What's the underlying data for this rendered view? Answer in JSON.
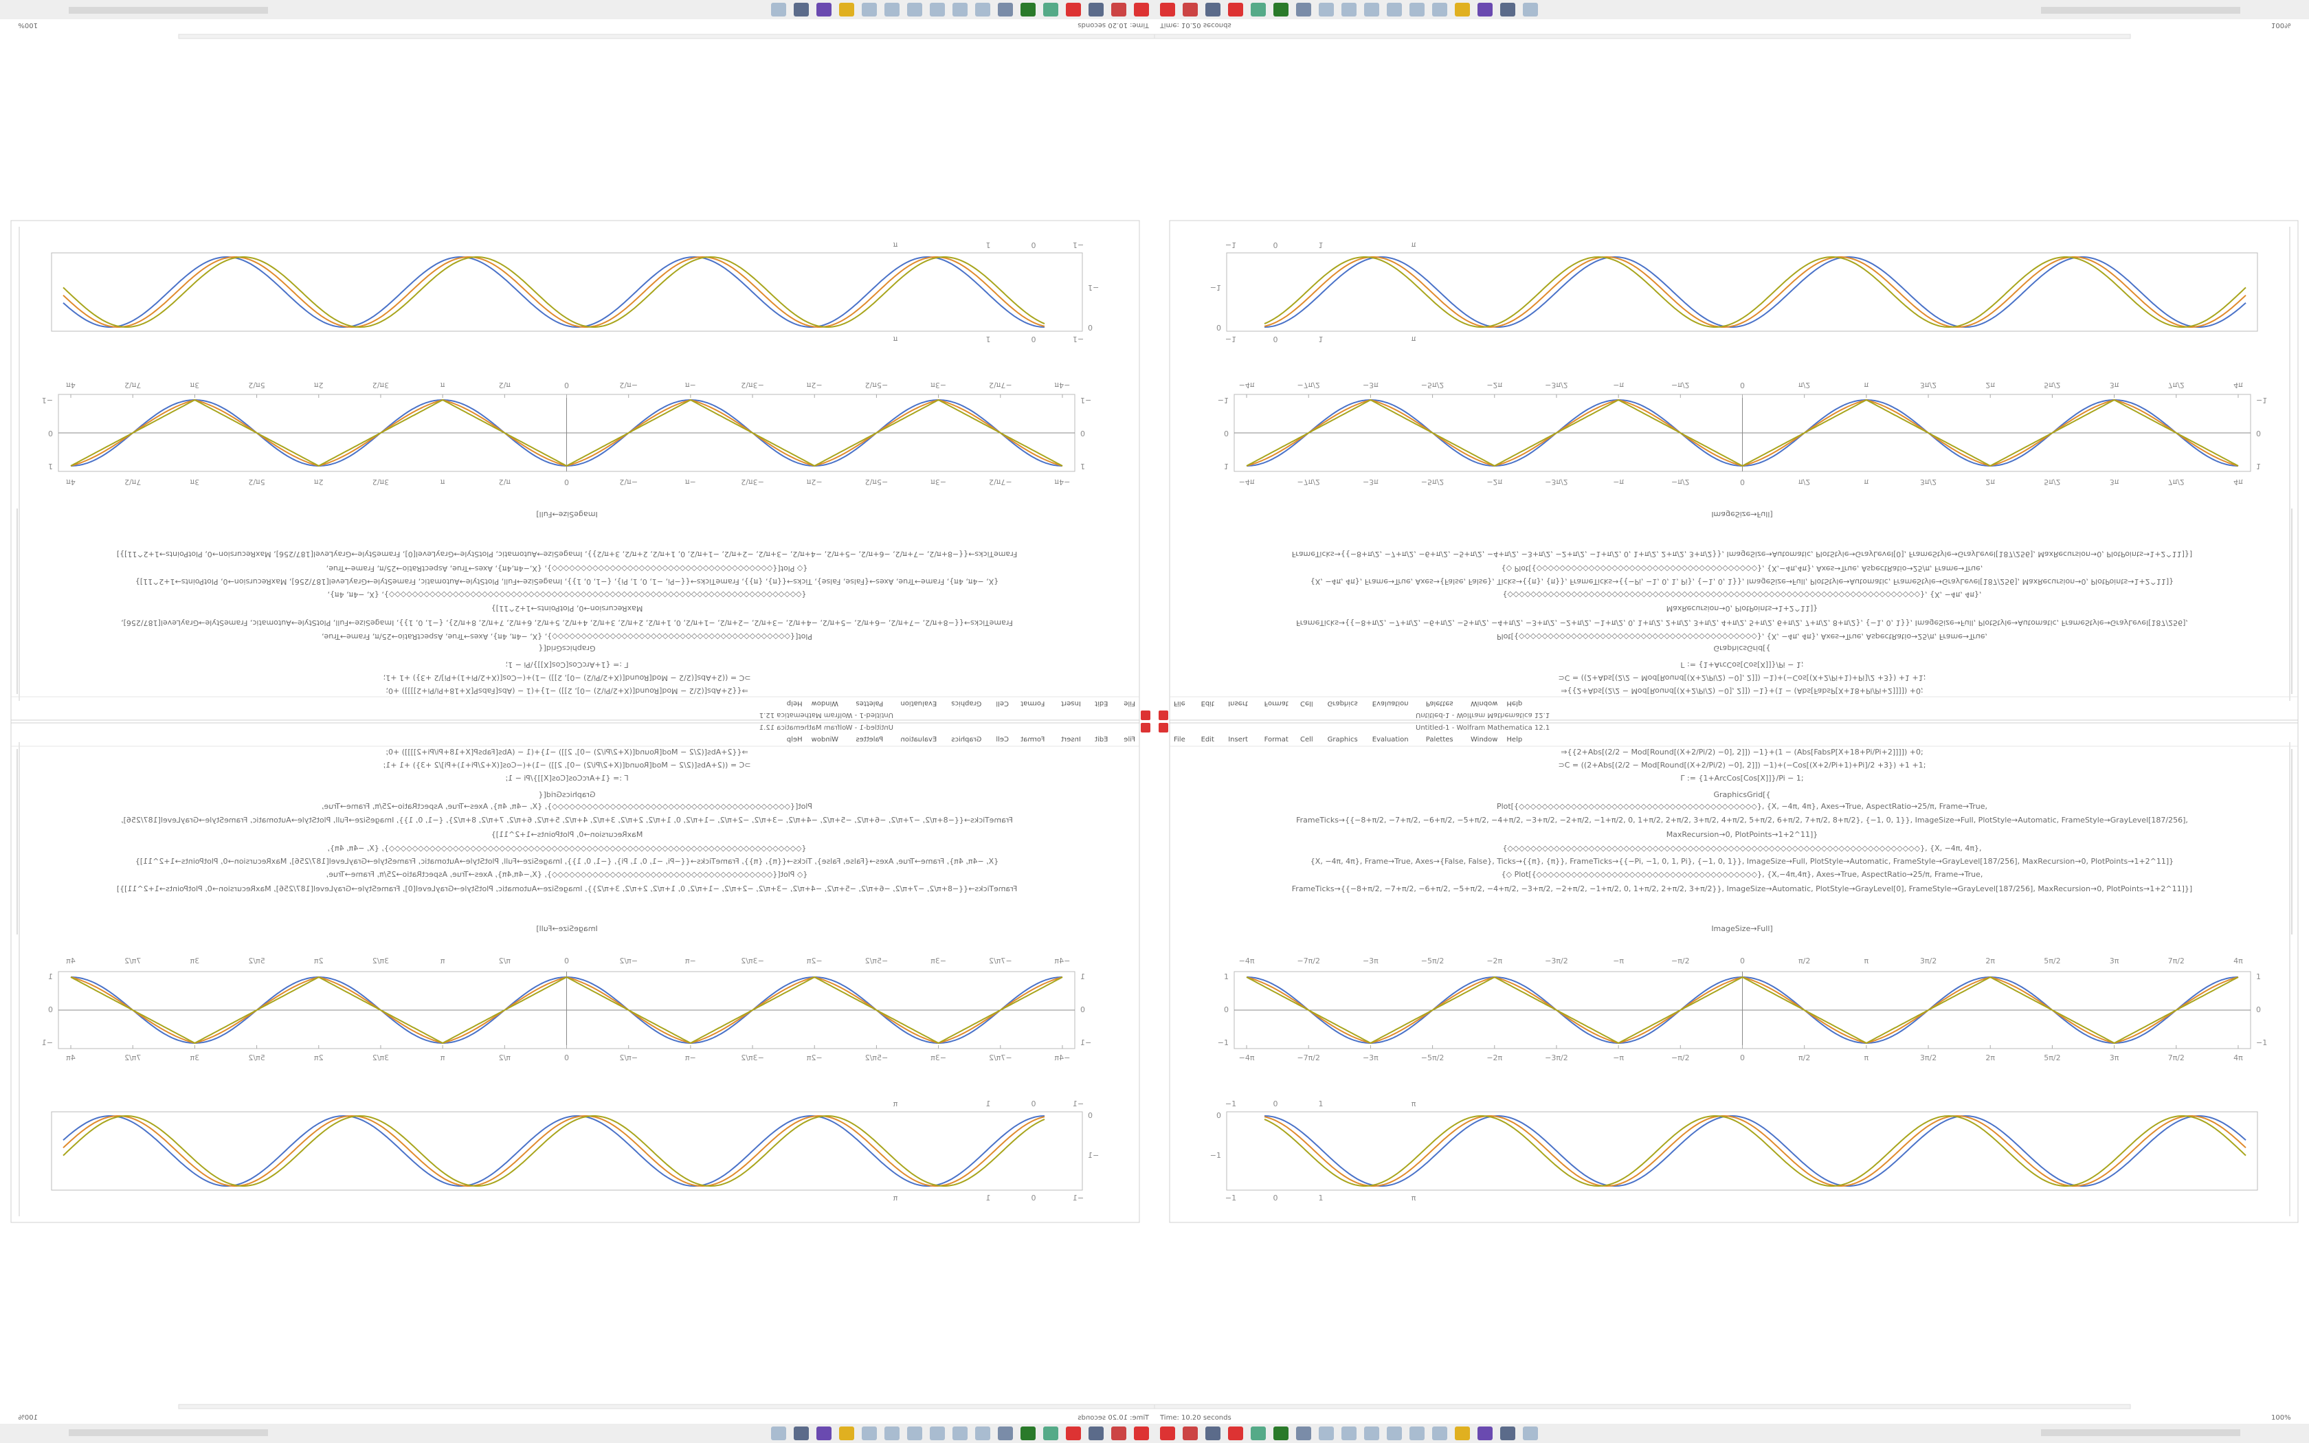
{
  "window": {
    "title": "Untitled-1 - Wolfram Mathematica 12.1",
    "menu": [
      "File",
      "Edit",
      "Insert",
      "Format",
      "Cell",
      "Graphics",
      "Evaluation",
      "Palettes",
      "Window",
      "Help"
    ],
    "zoom": "100%"
  },
  "notebook": {
    "code": [
      "⇒{{2+Abs[(2/2 − Mod[Round[(X+2/Pi/2) −0], 2]]) −1}+(1 − (Abs[FabsP[X+18+Pi/Pi+2]]]]) +0;",
      "⊃C = ((2+Abs[(2/2 − Mod[Round[(X+2/Pi/2) −0], 2]]) −1)+(−Cos[(X+2/Pi+1)+Pi]/2 +3}) +1 +1;",
      "Γ := {1+ArcCos[Cos[X]]}/Pi − 1;",
      "GraphicsGrid[{",
      "Plot[{◇◇◇◇◇◇◇◇◇◇◇◇◇◇◇◇◇◇◇◇◇◇◇◇◇◇◇◇◇◇◇◇◇◇◇◇◇◇◇◇◇}, {X, −4π, 4π}, Axes→True, AspectRatio→25/π, Frame→True,",
      "FrameTicks→{{−8+π/2, −7+π/2, −6+π/2, −5+π/2, −4+π/2, −3+π/2, −2+π/2, −1+π/2, 0, 1+π/2, 2+π/2, 3+π/2, 4+π/2, 5+π/2, 6+π/2, 7+π/2, 8+π/2}, {−1, 0, 1}}, ImageSize→Full, PlotStyle→Automatic, FrameStyle→GrayLevel[187/256],",
      "MaxRecursion→0, PlotPoints→1+2^11]}",
      "{◇◇◇◇◇◇◇◇◇◇◇◇◇◇◇◇◇◇◇◇◇◇◇◇◇◇◇◇◇◇◇◇◇◇◇◇◇◇◇◇◇◇◇◇◇◇◇◇◇◇◇◇◇◇◇◇◇◇◇◇◇◇◇◇◇◇◇◇◇◇◇}, {X, −4π, 4π},",
      "{X, −4π, 4π}, Frame→True, Axes→{False, False}, Ticks→{{π}, {π}}, FrameTicks→{{−Pi, −1, 0, 1, Pi}, {−1, 0, 1}}, ImageSize→Full, PlotStyle→Automatic, FrameStyle→GrayLevel[187/256], MaxRecursion→0, PlotPoints→1+2^11]}",
      "{◇ Plot[{◇◇◇◇◇◇◇◇◇◇◇◇◇◇◇◇◇◇◇◇◇◇◇◇◇◇◇◇◇◇◇◇◇◇◇◇◇◇}, {X,−4π,4π}, Axes→True, AspectRatio→25/π, Frame→True,",
      "FrameTicks→{{−8+π/2, −7+π/2, −6+π/2, −5+π/2, −4+π/2, −3+π/2, −2+π/2, −1+π/2, 0, 1+π/2, 2+π/2, 3+π/2}}, ImageSize→Automatic, PlotStyle→GrayLevel[0], FrameStyle→GrayLevel[187/256], MaxRecursion→0, PlotPoints→1+2^11]}]",
      "ImageSize→Full]"
    ],
    "plots": [
      {
        "x_ticks": [
          "−4π",
          "−7π/2",
          "−3π",
          "−5π/2",
          "−2π",
          "−3π/2",
          "−π",
          "−π/2",
          "0",
          "π/2",
          "π",
          "3π/2",
          "2π",
          "5π/2",
          "3π",
          "7π/2",
          "4π"
        ],
        "y_ticks": [
          "1",
          "0",
          "−1"
        ]
      },
      {
        "x_ticks": [
          "−1",
          "0",
          "1",
          "π"
        ],
        "y_ticks": [
          "0",
          "−1"
        ]
      }
    ]
  },
  "status": {
    "time": "Time: 10.20 seconds"
  }
}
